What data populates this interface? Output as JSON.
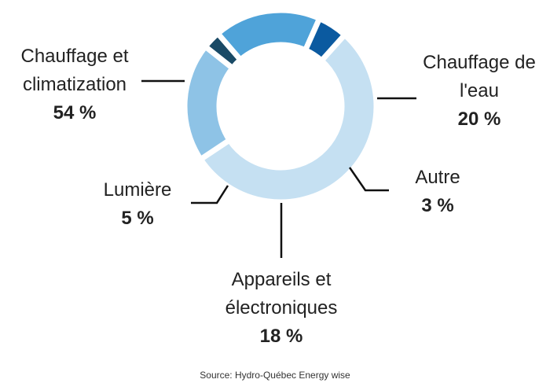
{
  "chart_data": {
    "type": "pie",
    "categories": [
      "Chauffage et climatization",
      "Chauffage de l'eau",
      "Autre",
      "Appareils et électroniques",
      "Lumière"
    ],
    "values": [
      54,
      20,
      3,
      18,
      5
    ],
    "value_labels": [
      "54 %",
      "20 %",
      "3 %",
      "18 %",
      "5 %"
    ],
    "colors": [
      "#c5e0f2",
      "#8ec3e6",
      "#1a4a66",
      "#4fa3d9",
      "#0b5aa0"
    ],
    "source": "Source: Hydro-Québec Energy wise"
  }
}
